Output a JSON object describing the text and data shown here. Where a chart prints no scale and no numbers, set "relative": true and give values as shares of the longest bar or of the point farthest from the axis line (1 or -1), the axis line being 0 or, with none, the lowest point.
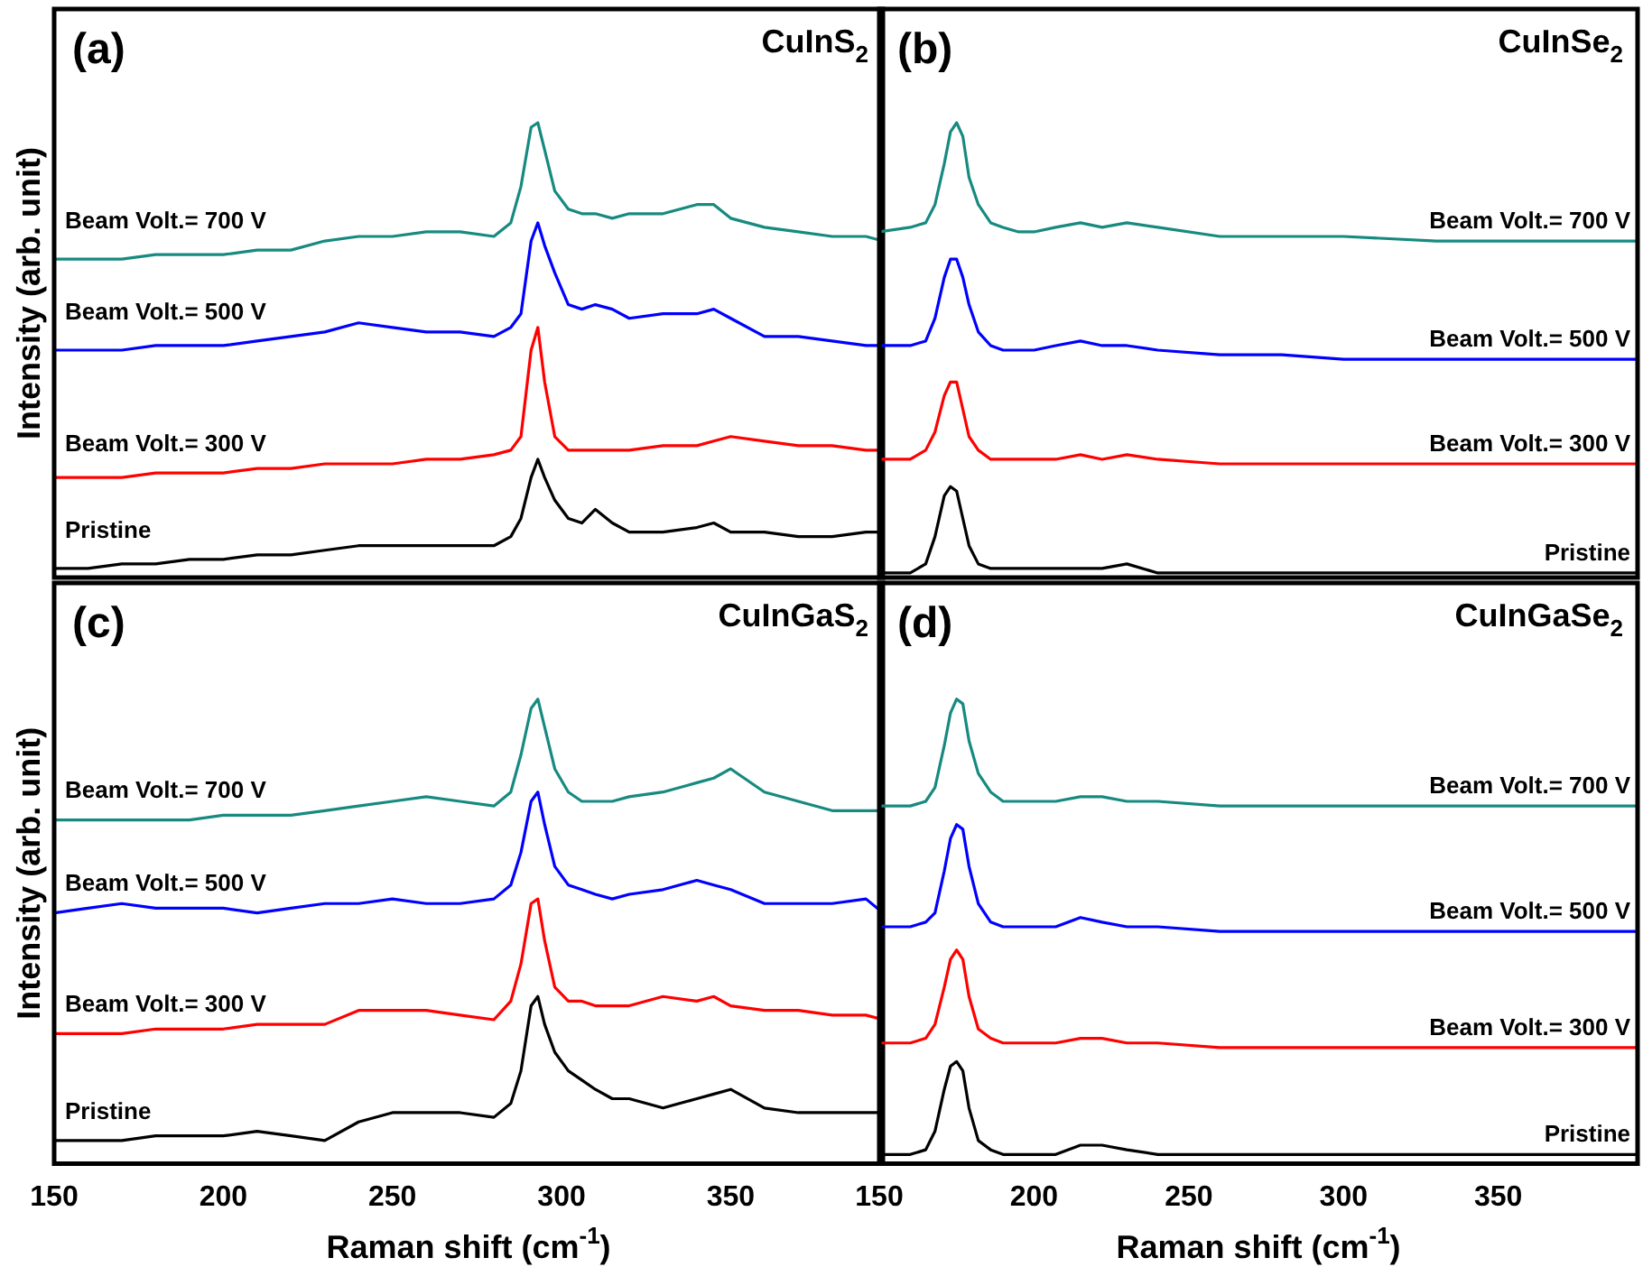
{
  "chart_data": [
    {
      "type": "line",
      "relative": true,
      "marker": "none",
      "tick_labels": false,
      "ylabel": "Intensity (arb. unit)",
      "annotations": [
        "(a)",
        "CuInS$_{2}$"
      ],
      "xlim": [
        150,
        395
      ],
      "xticks": [
        150,
        200,
        250,
        300,
        350
      ],
      "x": [
        150,
        160,
        170,
        180,
        190,
        200,
        210,
        220,
        230,
        240,
        250,
        260,
        270,
        280,
        285,
        288,
        291,
        293,
        295,
        298,
        302,
        306,
        310,
        315,
        320,
        330,
        340,
        345,
        350,
        360,
        370,
        380,
        390,
        395
      ],
      "series": [
        {
          "name": "Pristine",
          "color": "#000000",
          "values": [
            0.02,
            0.02,
            0.03,
            0.03,
            0.04,
            0.04,
            0.05,
            0.05,
            0.06,
            0.07,
            0.07,
            0.07,
            0.07,
            0.07,
            0.09,
            0.13,
            0.22,
            0.26,
            0.22,
            0.17,
            0.13,
            0.12,
            0.15,
            0.12,
            0.1,
            0.1,
            0.11,
            0.12,
            0.1,
            0.1,
            0.09,
            0.09,
            0.1,
            0.1
          ]
        },
        {
          "name": "Beam Volt.= 300 V",
          "color": "#ff0000",
          "values": [
            0.22,
            0.22,
            0.22,
            0.23,
            0.23,
            0.23,
            0.24,
            0.24,
            0.25,
            0.25,
            0.25,
            0.26,
            0.26,
            0.27,
            0.28,
            0.31,
            0.5,
            0.55,
            0.43,
            0.31,
            0.28,
            0.28,
            0.28,
            0.28,
            0.28,
            0.29,
            0.29,
            0.3,
            0.31,
            0.3,
            0.29,
            0.29,
            0.28,
            0.28
          ]
        },
        {
          "name": "Beam Volt.= 500 V",
          "color": "#0000ff",
          "values": [
            0.5,
            0.5,
            0.5,
            0.51,
            0.51,
            0.51,
            0.52,
            0.53,
            0.54,
            0.56,
            0.55,
            0.54,
            0.54,
            0.53,
            0.55,
            0.58,
            0.74,
            0.78,
            0.73,
            0.67,
            0.6,
            0.59,
            0.6,
            0.59,
            0.57,
            0.58,
            0.58,
            0.59,
            0.57,
            0.53,
            0.53,
            0.52,
            0.51,
            0.51
          ]
        },
        {
          "name": "Beam Volt.= 700 V",
          "color": "#178a80",
          "values": [
            0.7,
            0.7,
            0.7,
            0.71,
            0.71,
            0.71,
            0.72,
            0.72,
            0.74,
            0.75,
            0.75,
            0.76,
            0.76,
            0.75,
            0.78,
            0.86,
            0.99,
            1.0,
            0.94,
            0.85,
            0.81,
            0.8,
            0.8,
            0.79,
            0.8,
            0.8,
            0.82,
            0.82,
            0.79,
            0.77,
            0.76,
            0.75,
            0.75,
            0.74
          ]
        }
      ]
    },
    {
      "type": "line",
      "relative": true,
      "marker": "none",
      "tick_labels": false,
      "annotations": [
        "(b)",
        "CuInSe$_{2}$"
      ],
      "xlim": [
        150,
        395
      ],
      "xticks": [
        150,
        200,
        250,
        300,
        350
      ],
      "x": [
        150,
        160,
        165,
        168,
        171,
        173,
        175,
        177,
        179,
        182,
        186,
        190,
        195,
        200,
        207,
        215,
        222,
        230,
        240,
        260,
        280,
        300,
        330,
        360,
        395
      ],
      "series": [
        {
          "name": "Pristine",
          "color": "#000000",
          "values": [
            0.01,
            0.01,
            0.03,
            0.09,
            0.18,
            0.2,
            0.19,
            0.13,
            0.07,
            0.03,
            0.02,
            0.02,
            0.02,
            0.02,
            0.02,
            0.02,
            0.02,
            0.03,
            0.01,
            0.01,
            0.01,
            0.01,
            0.01,
            0.01,
            0.01
          ]
        },
        {
          "name": "Beam Volt.= 300 V",
          "color": "#ff0000",
          "values": [
            0.26,
            0.26,
            0.28,
            0.32,
            0.4,
            0.43,
            0.43,
            0.37,
            0.31,
            0.28,
            0.26,
            0.26,
            0.26,
            0.26,
            0.26,
            0.27,
            0.26,
            0.27,
            0.26,
            0.25,
            0.25,
            0.25,
            0.25,
            0.25,
            0.25
          ]
        },
        {
          "name": "Beam Volt.= 500 V",
          "color": "#0000ff",
          "values": [
            0.51,
            0.51,
            0.52,
            0.57,
            0.66,
            0.7,
            0.7,
            0.66,
            0.6,
            0.54,
            0.51,
            0.5,
            0.5,
            0.5,
            0.51,
            0.52,
            0.51,
            0.51,
            0.5,
            0.49,
            0.49,
            0.48,
            0.48,
            0.48,
            0.48
          ]
        },
        {
          "name": "Beam Volt.= 700 V",
          "color": "#178a80",
          "values": [
            0.76,
            0.77,
            0.78,
            0.82,
            0.91,
            0.98,
            1.0,
            0.97,
            0.88,
            0.82,
            0.78,
            0.77,
            0.76,
            0.76,
            0.77,
            0.78,
            0.77,
            0.78,
            0.77,
            0.75,
            0.75,
            0.75,
            0.74,
            0.74,
            0.74
          ]
        }
      ]
    },
    {
      "type": "line",
      "relative": true,
      "marker": "none",
      "tick_labels": "x",
      "ylabel": "Intensity (arb. unit)",
      "xlabel": "Raman shift (cm$^{-1}$)",
      "annotations": [
        "(c)",
        "CuInGaS$_{2}$"
      ],
      "xlim": [
        150,
        395
      ],
      "xticks": [
        150,
        200,
        250,
        300,
        350
      ],
      "x": [
        150,
        160,
        170,
        180,
        190,
        200,
        210,
        220,
        230,
        240,
        250,
        260,
        270,
        280,
        285,
        288,
        291,
        293,
        295,
        298,
        302,
        306,
        310,
        315,
        320,
        330,
        340,
        345,
        350,
        360,
        370,
        380,
        390,
        395
      ],
      "series": [
        {
          "name": "Pristine",
          "color": "#000000",
          "values": [
            0.05,
            0.05,
            0.05,
            0.06,
            0.06,
            0.06,
            0.07,
            0.06,
            0.05,
            0.09,
            0.11,
            0.11,
            0.11,
            0.1,
            0.13,
            0.2,
            0.34,
            0.36,
            0.3,
            0.24,
            0.2,
            0.18,
            0.16,
            0.14,
            0.14,
            0.12,
            0.14,
            0.15,
            0.16,
            0.12,
            0.11,
            0.11,
            0.11,
            0.11
          ]
        },
        {
          "name": "Beam Volt.= 300 V",
          "color": "#ff0000",
          "values": [
            0.28,
            0.28,
            0.28,
            0.29,
            0.29,
            0.29,
            0.3,
            0.3,
            0.3,
            0.33,
            0.33,
            0.33,
            0.32,
            0.31,
            0.35,
            0.43,
            0.56,
            0.57,
            0.48,
            0.38,
            0.35,
            0.35,
            0.34,
            0.34,
            0.34,
            0.36,
            0.35,
            0.36,
            0.34,
            0.33,
            0.33,
            0.32,
            0.32,
            0.31
          ]
        },
        {
          "name": "Beam Volt.= 500 V",
          "color": "#0000ff",
          "values": [
            0.54,
            0.55,
            0.56,
            0.55,
            0.55,
            0.55,
            0.54,
            0.55,
            0.56,
            0.56,
            0.57,
            0.56,
            0.56,
            0.57,
            0.6,
            0.67,
            0.78,
            0.8,
            0.73,
            0.64,
            0.6,
            0.59,
            0.58,
            0.57,
            0.58,
            0.59,
            0.61,
            0.6,
            0.59,
            0.56,
            0.56,
            0.56,
            0.57,
            0.54
          ]
        },
        {
          "name": "Beam Volt.= 700 V",
          "color": "#178a80",
          "values": [
            0.74,
            0.74,
            0.74,
            0.74,
            0.74,
            0.75,
            0.75,
            0.75,
            0.76,
            0.77,
            0.78,
            0.79,
            0.78,
            0.77,
            0.8,
            0.88,
            0.98,
            1.0,
            0.94,
            0.85,
            0.8,
            0.78,
            0.78,
            0.78,
            0.79,
            0.8,
            0.82,
            0.83,
            0.85,
            0.8,
            0.78,
            0.76,
            0.76,
            0.76
          ]
        }
      ]
    },
    {
      "type": "line",
      "relative": true,
      "marker": "none",
      "tick_labels": "x",
      "xlabel": "Raman shift (cm$^{-1}$)",
      "annotations": [
        "(d)",
        "CuInGaSe$_{2}$"
      ],
      "xlim": [
        150,
        395
      ],
      "xticks": [
        150,
        200,
        250,
        300,
        350
      ],
      "x": [
        150,
        160,
        165,
        168,
        171,
        173,
        175,
        177,
        179,
        182,
        186,
        190,
        195,
        200,
        207,
        215,
        222,
        230,
        240,
        260,
        280,
        300,
        330,
        360,
        395
      ],
      "series": [
        {
          "name": "Pristine",
          "color": "#000000",
          "values": [
            0.02,
            0.02,
            0.03,
            0.07,
            0.16,
            0.21,
            0.22,
            0.2,
            0.12,
            0.05,
            0.03,
            0.02,
            0.02,
            0.02,
            0.02,
            0.04,
            0.04,
            0.03,
            0.02,
            0.02,
            0.02,
            0.02,
            0.02,
            0.02,
            0.02
          ]
        },
        {
          "name": "Beam Volt.= 300 V",
          "color": "#ff0000",
          "values": [
            0.26,
            0.26,
            0.27,
            0.3,
            0.38,
            0.44,
            0.46,
            0.44,
            0.36,
            0.29,
            0.27,
            0.26,
            0.26,
            0.26,
            0.26,
            0.27,
            0.27,
            0.26,
            0.26,
            0.25,
            0.25,
            0.25,
            0.25,
            0.25,
            0.25
          ]
        },
        {
          "name": "Beam Volt.= 500 V",
          "color": "#0000ff",
          "values": [
            0.51,
            0.51,
            0.52,
            0.54,
            0.63,
            0.7,
            0.73,
            0.72,
            0.64,
            0.56,
            0.52,
            0.51,
            0.51,
            0.51,
            0.51,
            0.53,
            0.52,
            0.51,
            0.51,
            0.5,
            0.5,
            0.5,
            0.5,
            0.5,
            0.5
          ]
        },
        {
          "name": "Beam Volt.= 700 V",
          "color": "#178a80",
          "values": [
            0.77,
            0.77,
            0.78,
            0.81,
            0.9,
            0.97,
            1.0,
            0.99,
            0.91,
            0.84,
            0.8,
            0.78,
            0.78,
            0.78,
            0.78,
            0.79,
            0.79,
            0.78,
            0.78,
            0.77,
            0.77,
            0.77,
            0.77,
            0.77,
            0.77
          ]
        }
      ]
    }
  ]
}
